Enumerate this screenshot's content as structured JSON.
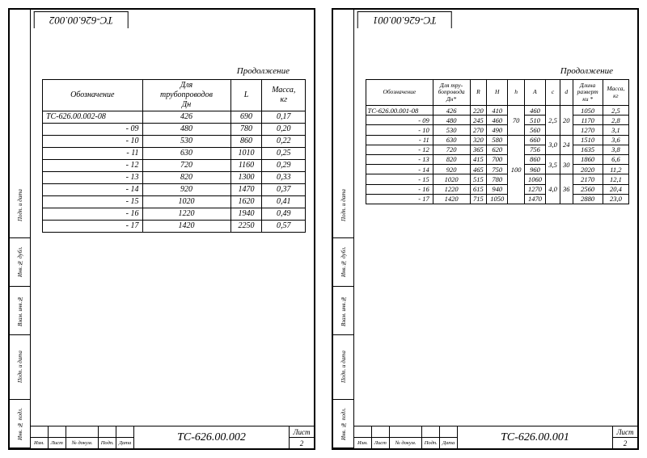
{
  "sheet1": {
    "top_label": "ТС-626.00.002",
    "continuation": "Продолжение",
    "columns": [
      "Обозначение",
      "Для\nтрубопроводов\nДн",
      "L",
      "Масса,\nкг"
    ],
    "rows": [
      [
        "ТС-626.00.002-08",
        "426",
        "690",
        "0,17"
      ],
      [
        "- 09",
        "480",
        "780",
        "0,20"
      ],
      [
        "- 10",
        "530",
        "860",
        "0,22"
      ],
      [
        "- 11",
        "630",
        "1010",
        "0,25"
      ],
      [
        "- 12",
        "720",
        "1160",
        "0,29"
      ],
      [
        "- 13",
        "820",
        "1300",
        "0,33"
      ],
      [
        "- 14",
        "920",
        "1470",
        "0,37"
      ],
      [
        "- 15",
        "1020",
        "1620",
        "0,41"
      ],
      [
        "- 16",
        "1220",
        "1940",
        "0,49"
      ],
      [
        "- 17",
        "1420",
        "2250",
        "0,57"
      ]
    ],
    "strip": [
      "Инв. № подл.",
      "Подп. и дата",
      "Взам. инв.№",
      "Инв.№ дубл.",
      "Подп. и дата"
    ],
    "tb_labels": [
      "Изм.",
      "Лист",
      "№ докум.",
      "Подп.",
      "Дата"
    ],
    "tb_code": "ТС-626.00.002",
    "sheet_label": "Лист",
    "sheet_no": "2"
  },
  "sheet2": {
    "top_label": "ТС-626.00.001",
    "continuation": "Продолжение",
    "columns": [
      "Обозначение",
      "Для тру-\nбопровода\nДн*",
      "R",
      "H",
      "h",
      "A",
      "c",
      "d",
      "Длина\nразверт\nки *",
      "Масса,\nкг"
    ],
    "rows": [
      {
        "d": "ТС-626.00.001-08",
        "dn": "426",
        "R": "220",
        "H": "410",
        "h": "70",
        "A": "460",
        "c": "2,5",
        "dd": "20",
        "len": "1050",
        "m": "2,5"
      },
      {
        "d": "- 09",
        "dn": "480",
        "R": "245",
        "H": "460",
        "A": "510",
        "len": "1170",
        "m": "2,8"
      },
      {
        "d": "- 10",
        "dn": "530",
        "R": "270",
        "H": "490",
        "A": "560",
        "len": "1270",
        "m": "3,1"
      },
      {
        "d": "- 11",
        "dn": "630",
        "R": "320",
        "H": "580",
        "h": "100",
        "A": "660",
        "c": "3,0",
        "dd": "24",
        "len": "1510",
        "m": "3,6"
      },
      {
        "d": "- 12",
        "dn": "720",
        "R": "365",
        "H": "620",
        "A": "756",
        "len": "1635",
        "m": "3,8"
      },
      {
        "d": "- 13",
        "dn": "820",
        "R": "415",
        "H": "700",
        "A": "860",
        "c": "3,5",
        "dd": "30",
        "len": "1860",
        "m": "6,6"
      },
      {
        "d": "- 14",
        "dn": "920",
        "R": "465",
        "H": "750",
        "A": "960",
        "len": "2020",
        "m": "11,2"
      },
      {
        "d": "- 15",
        "dn": "1020",
        "R": "515",
        "H": "780",
        "A": "1060",
        "c": "4,0",
        "dd": "36",
        "len": "2170",
        "m": "12,1"
      },
      {
        "d": "- 16",
        "dn": "1220",
        "R": "615",
        "H": "940",
        "A": "1270",
        "len": "2560",
        "m": "20,4"
      },
      {
        "d": "- 17",
        "dn": "1420",
        "R": "715",
        "H": "1050",
        "A": "1470",
        "len": "2880",
        "m": "23,0"
      }
    ],
    "strip": [
      "Инв. № подл.",
      "Подп. и дата",
      "Взам. инв.№",
      "Инв.№ дубл.",
      "Подп. и дата"
    ],
    "tb_labels": [
      "Изм.",
      "Лист",
      "№ докум.",
      "Подп.",
      "Дата"
    ],
    "tb_code": "ТС-626.00.001",
    "sheet_label": "Лист",
    "sheet_no": "2"
  },
  "colors": {
    "line": "#000000",
    "bg": "#ffffff"
  }
}
